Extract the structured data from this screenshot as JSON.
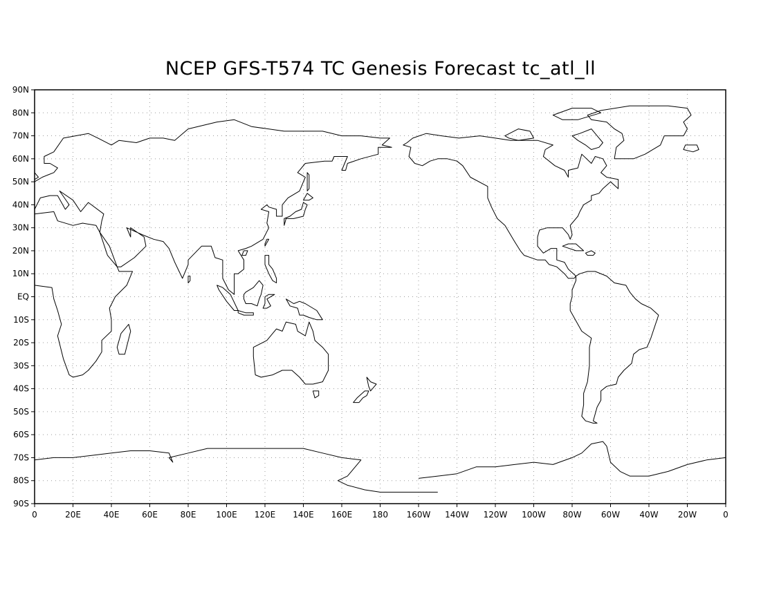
{
  "title": "NCEP GFS-T574 TC Genesis Forecast tc_atl_ll",
  "map": {
    "projection": "latlon",
    "center_longitude": 180,
    "lon_range": [
      0,
      360
    ],
    "lat_range": [
      -90,
      90
    ],
    "grid": "dotted",
    "lon_labels": [
      "0",
      "20E",
      "40E",
      "60E",
      "80E",
      "100E",
      "120E",
      "140E",
      "160E",
      "180",
      "160W",
      "140W",
      "120W",
      "100W",
      "80W",
      "60W",
      "40W",
      "20W",
      "0"
    ],
    "lat_labels": [
      "90N",
      "80N",
      "70N",
      "60N",
      "50N",
      "40N",
      "30N",
      "20N",
      "10N",
      "EQ",
      "10S",
      "20S",
      "30S",
      "40S",
      "50S",
      "60S",
      "70S",
      "80S",
      "90S"
    ],
    "line_color": "#000000",
    "grid_color": "#999999"
  }
}
